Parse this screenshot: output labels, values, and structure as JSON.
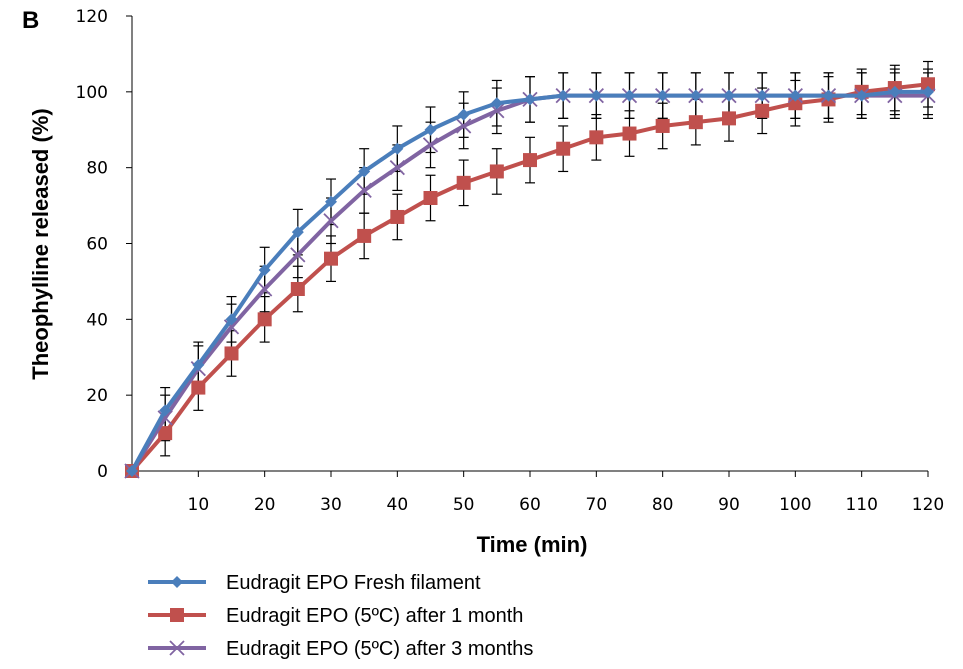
{
  "panel_label": "B",
  "chart_data": {
    "type": "line",
    "title": "",
    "xlabel": "Time (min)",
    "ylabel": "Theophylline released (%)",
    "xlim": [
      0,
      120
    ],
    "ylim": [
      0,
      120
    ],
    "xticks": [
      10,
      20,
      30,
      40,
      50,
      60,
      70,
      80,
      90,
      100,
      110,
      120
    ],
    "yticks": [
      0,
      20,
      40,
      60,
      80,
      100,
      120
    ],
    "grid": false,
    "legend_position": "bottom",
    "x": [
      0,
      5,
      10,
      15,
      20,
      25,
      30,
      35,
      40,
      45,
      50,
      55,
      60,
      65,
      70,
      75,
      80,
      85,
      90,
      95,
      100,
      105,
      110,
      115,
      120
    ],
    "series": [
      {
        "name": "Eudragit EPO Fresh filament",
        "color": "#4a7ebb",
        "marker": "diamond",
        "values": [
          0,
          16,
          28,
          40,
          53,
          63,
          71,
          79,
          85,
          90,
          94,
          97,
          98,
          99,
          99,
          99,
          99,
          99,
          99,
          99,
          99,
          99,
          99,
          100,
          100
        ],
        "errors": [
          0,
          6,
          6,
          6,
          6,
          6,
          6,
          6,
          6,
          6,
          6,
          6,
          6,
          6,
          6,
          6,
          6,
          6,
          6,
          6,
          6,
          6,
          6,
          6,
          6
        ]
      },
      {
        "name": "Eudragit EPO (5ºC) after 1 month",
        "color": "#c0504d",
        "marker": "square",
        "values": [
          0,
          10,
          22,
          31,
          40,
          48,
          56,
          62,
          67,
          72,
          76,
          79,
          82,
          85,
          88,
          89,
          91,
          92,
          93,
          95,
          97,
          98,
          100,
          101,
          102
        ],
        "errors": [
          0,
          6,
          6,
          6,
          6,
          6,
          6,
          6,
          6,
          6,
          6,
          6,
          6,
          6,
          6,
          6,
          6,
          6,
          6,
          6,
          6,
          6,
          6,
          6,
          6
        ]
      },
      {
        "name": "Eudragit EPO (5ºC) after 3 months",
        "color": "#8064a2",
        "marker": "x",
        "values": [
          0,
          14,
          27,
          38,
          48,
          57,
          66,
          74,
          80,
          86,
          91,
          95,
          98,
          99,
          99,
          99,
          99,
          99,
          99,
          99,
          99,
          99,
          99,
          99,
          99
        ],
        "errors": [
          0,
          6,
          6,
          6,
          6,
          6,
          6,
          6,
          6,
          6,
          6,
          6,
          6,
          6,
          6,
          6,
          6,
          6,
          6,
          6,
          6,
          6,
          6,
          6,
          6
        ]
      }
    ]
  }
}
